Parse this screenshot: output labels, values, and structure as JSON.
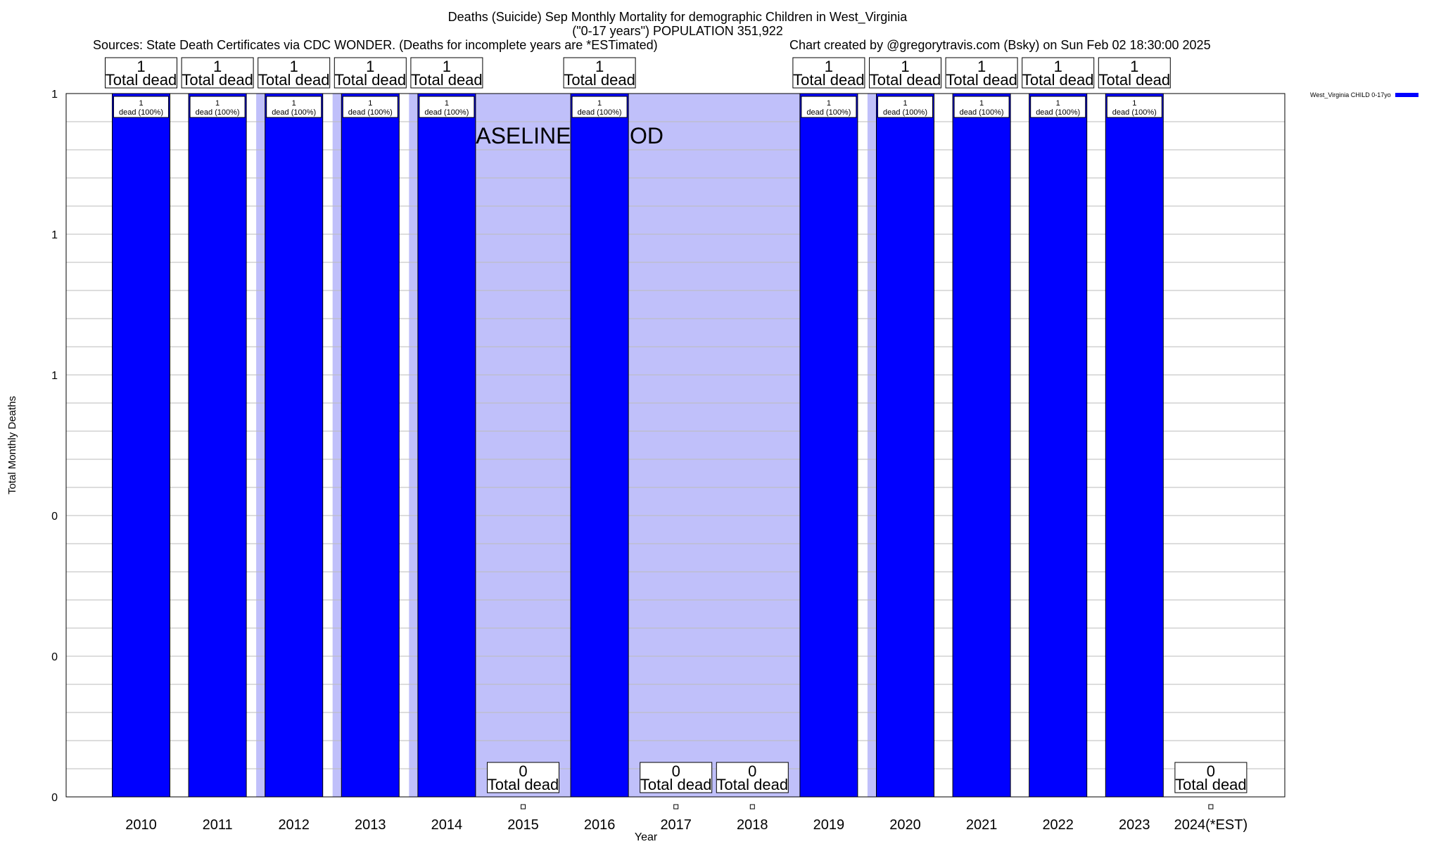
{
  "title_line1": "Deaths (Suicide) Sep Monthly Mortality for demographic Children in West_Virginia",
  "title_line2": "(\"0-17 years\") POPULATION 351,922",
  "sources": "Sources: State Death Certificates via CDC WONDER. (Deaths for incomplete years are *ESTimated)",
  "credit": "Chart created by @gregorytravis.com (Bsky) on Sun Feb 02 18:30:00 2025",
  "colors": {
    "bar": "#0000ff",
    "baseline_shade": "#c0c0fa",
    "grid": "#bbbbbb"
  },
  "chart_data": {
    "type": "bar",
    "categories": [
      "2010",
      "2011",
      "2012",
      "2013",
      "2014",
      "2015",
      "2016",
      "2017",
      "2018",
      "2019",
      "2020",
      "2021",
      "2022",
      "2023",
      "2024(*EST)"
    ],
    "series": [
      {
        "name": "West_Virginia CHILD 0-17yo",
        "values": [
          1,
          1,
          1,
          1,
          1,
          0,
          1,
          0,
          0,
          1,
          1,
          1,
          1,
          1,
          0
        ]
      }
    ],
    "ylim": [
      0,
      1
    ],
    "yticks": [
      "0",
      "0",
      "0",
      "1",
      "1",
      "1"
    ],
    "xlabel": "Year",
    "ylabel": "Total Monthly Deaths",
    "total_labels": {
      "value_text": [
        "1",
        "1",
        "1",
        "1",
        "1",
        "0",
        "1",
        "0",
        "0",
        "1",
        "1",
        "1",
        "1",
        "1",
        "0"
      ],
      "suffix": "Total dead"
    },
    "bar_labels": [
      "1",
      "1",
      "1",
      "1",
      "1",
      "",
      "1",
      "",
      "",
      "1",
      "1",
      "1",
      "1",
      "1",
      ""
    ],
    "bar_label_suffix": "dead (100%)",
    "baseline": {
      "label": "BASELINE PERIOD",
      "start_category": "2015",
      "end_category": "2019"
    },
    "legend_position": "top-right",
    "grid": true
  }
}
